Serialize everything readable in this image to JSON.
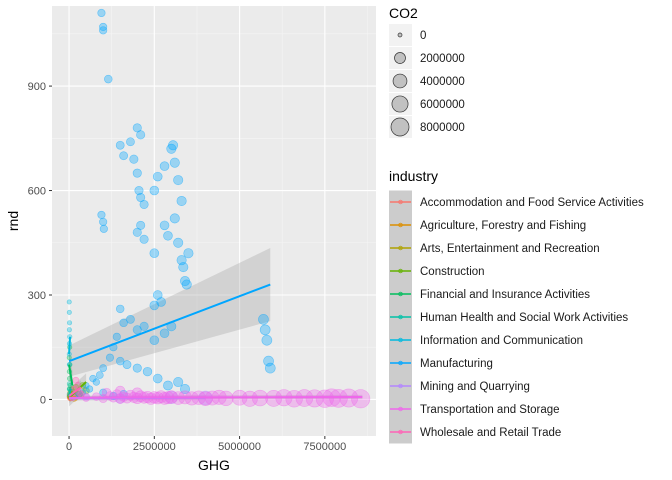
{
  "chart_data": {
    "type": "scatter",
    "xlabel": "GHG",
    "ylabel": "rnd",
    "xlim": [
      -500000,
      9000000
    ],
    "ylim": [
      -105,
      1130
    ],
    "x_ticks": [
      0,
      2500000,
      5000000,
      7500000
    ],
    "x_tick_labels": [
      "0",
      "2500000",
      "5000000",
      "7500000"
    ],
    "y_ticks": [
      0,
      300,
      600,
      900
    ],
    "y_tick_labels": [
      "0",
      "300",
      "600",
      "900"
    ],
    "grid": true,
    "background": "#ebebeb",
    "size_legend": {
      "title": "CO2",
      "values": [
        0,
        2000000,
        4000000,
        6000000,
        8000000
      ],
      "labels": [
        "0",
        "2000000",
        "4000000",
        "6000000",
        "8000000"
      ]
    },
    "color_legend": {
      "title": "industry",
      "position": "right"
    },
    "series": [
      {
        "name": "Accommodation and Food Service Activities",
        "color": "#F8766D",
        "points": [
          [
            5000,
            5,
            0
          ],
          [
            12000,
            12,
            20000
          ],
          [
            20000,
            3,
            10000
          ],
          [
            30000,
            18,
            30000
          ],
          [
            8000,
            8,
            5000
          ],
          [
            40000,
            2,
            15000
          ]
        ],
        "fit": [
          [
            0,
            5
          ],
          [
            45000,
            6
          ]
        ],
        "band": 5
      },
      {
        "name": "Agriculture, Forestry and Fishing",
        "color": "#DB8E00",
        "points": [
          [
            15000,
            8,
            40000
          ],
          [
            60000,
            4,
            80000
          ],
          [
            110000,
            15,
            120000
          ],
          [
            150000,
            2,
            100000
          ],
          [
            200000,
            6,
            150000
          ]
        ],
        "fit": [
          [
            0,
            6
          ],
          [
            200000,
            7
          ]
        ],
        "band": 6
      },
      {
        "name": "Arts, Entertainment and Recreation",
        "color": "#AEA200",
        "points": [
          [
            10000,
            10,
            10000
          ],
          [
            30000,
            20,
            20000
          ],
          [
            50000,
            5,
            15000
          ],
          [
            70000,
            30,
            25000
          ]
        ],
        "fit": [
          [
            0,
            8
          ],
          [
            80000,
            25
          ]
        ],
        "band": 12
      },
      {
        "name": "Construction",
        "color": "#64B200",
        "points": [
          [
            100000,
            22,
            100000
          ],
          [
            200000,
            35,
            150000
          ],
          [
            300000,
            15,
            200000
          ],
          [
            400000,
            40,
            180000
          ],
          [
            500000,
            25,
            250000
          ],
          [
            350000,
            10,
            120000
          ]
        ],
        "fit": [
          [
            0,
            5
          ],
          [
            500000,
            50
          ]
        ],
        "band": 25
      },
      {
        "name": "Financial and Insurance Activities",
        "color": "#00BD5C",
        "points": [
          [
            5000,
            120,
            5000
          ],
          [
            10000,
            80,
            10000
          ],
          [
            20000,
            150,
            5000
          ],
          [
            15000,
            60,
            8000
          ],
          [
            30000,
            40,
            10000
          ],
          [
            25000,
            100,
            6000
          ],
          [
            8000,
            30,
            4000
          ]
        ],
        "fit": [
          [
            0,
            100
          ],
          [
            100000,
            40
          ]
        ],
        "band": 40
      },
      {
        "name": "Human Health and Social Work Activities",
        "color": "#00C1A7",
        "points": [
          [
            5000,
            15,
            5000
          ],
          [
            15000,
            30,
            10000
          ],
          [
            30000,
            10,
            15000
          ],
          [
            10000,
            45,
            8000
          ],
          [
            45000,
            25,
            20000
          ]
        ],
        "fit": [
          [
            0,
            10
          ],
          [
            50000,
            30
          ]
        ],
        "band": 15
      },
      {
        "name": "Information and Communication",
        "color": "#00BADE",
        "points": [
          [
            5000,
            280,
            5000
          ],
          [
            8000,
            250,
            6000
          ],
          [
            10000,
            200,
            8000
          ],
          [
            12000,
            160,
            10000
          ],
          [
            6000,
            130,
            5000
          ],
          [
            15000,
            220,
            8000
          ],
          [
            20000,
            180,
            12000
          ],
          [
            9000,
            100,
            7000
          ]
        ],
        "fit": [
          [
            0,
            130
          ],
          [
            30000,
            180
          ]
        ],
        "band": 30
      },
      {
        "name": "Manufacturing",
        "color": "#00A6FF",
        "points": [
          [
            950000,
            1110,
            500000
          ],
          [
            1000000,
            1060,
            500000
          ],
          [
            1000000,
            1070,
            500000
          ],
          [
            1150000,
            920,
            600000
          ],
          [
            1500000,
            730,
            700000
          ],
          [
            1600000,
            700,
            700000
          ],
          [
            2000000,
            780,
            800000
          ],
          [
            2100000,
            760,
            800000
          ],
          [
            1800000,
            740,
            700000
          ],
          [
            1900000,
            690,
            800000
          ],
          [
            2000000,
            650,
            800000
          ],
          [
            2050000,
            600,
            800000
          ],
          [
            2100000,
            580,
            800000
          ],
          [
            2200000,
            560,
            800000
          ],
          [
            2500000,
            600,
            1000000
          ],
          [
            2600000,
            640,
            1000000
          ],
          [
            2800000,
            670,
            1000000
          ],
          [
            3000000,
            720,
            1200000
          ],
          [
            3050000,
            730,
            1200000
          ],
          [
            3100000,
            680,
            1200000
          ],
          [
            3200000,
            630,
            1200000
          ],
          [
            3300000,
            570,
            1200000
          ],
          [
            950000,
            530,
            500000
          ],
          [
            1000000,
            510,
            500000
          ],
          [
            1020000,
            490,
            500000
          ],
          [
            2000000,
            480,
            800000
          ],
          [
            2100000,
            500,
            800000
          ],
          [
            2200000,
            460,
            800000
          ],
          [
            2800000,
            500,
            1000000
          ],
          [
            2900000,
            470,
            1000000
          ],
          [
            3200000,
            450,
            1200000
          ],
          [
            3300000,
            400,
            1200000
          ],
          [
            3350000,
            380,
            1200000
          ],
          [
            3400000,
            340,
            1200000
          ],
          [
            3450000,
            330,
            1200000
          ],
          [
            3500000,
            420,
            1200000
          ],
          [
            3100000,
            520,
            1200000
          ],
          [
            2500000,
            420,
            1000000
          ],
          [
            1500000,
            260,
            600000
          ],
          [
            1600000,
            220,
            600000
          ],
          [
            1800000,
            230,
            700000
          ],
          [
            2000000,
            200,
            800000
          ],
          [
            2200000,
            210,
            800000
          ],
          [
            2500000,
            270,
            1000000
          ],
          [
            2600000,
            300,
            1000000
          ],
          [
            2700000,
            280,
            1000000
          ],
          [
            1400000,
            180,
            500000
          ],
          [
            1300000,
            150,
            500000
          ],
          [
            1200000,
            120,
            500000
          ],
          [
            1000000,
            90,
            400000
          ],
          [
            900000,
            70,
            400000
          ],
          [
            800000,
            50,
            300000
          ],
          [
            1500000,
            110,
            600000
          ],
          [
            1700000,
            100,
            700000
          ],
          [
            2000000,
            90,
            800000
          ],
          [
            2300000,
            80,
            900000
          ],
          [
            2600000,
            60,
            1000000
          ],
          [
            2900000,
            40,
            1100000
          ],
          [
            3200000,
            50,
            1200000
          ],
          [
            3400000,
            30,
            1200000
          ],
          [
            500000,
            40,
            200000
          ],
          [
            600000,
            30,
            300000
          ],
          [
            400000,
            20,
            200000
          ],
          [
            300000,
            15,
            100000
          ],
          [
            200000,
            10,
            100000
          ],
          [
            700000,
            60,
            300000
          ],
          [
            1000000,
            20,
            400000
          ],
          [
            1300000,
            10,
            500000
          ],
          [
            1600000,
            15,
            600000
          ],
          [
            5700000,
            230,
            1500000
          ],
          [
            5750000,
            200,
            1500000
          ],
          [
            5800000,
            170,
            1500000
          ],
          [
            5850000,
            110,
            1500000
          ],
          [
            5900000,
            90,
            1500000
          ],
          [
            2500000,
            170,
            1000000
          ],
          [
            2800000,
            190,
            1000000
          ],
          [
            3000000,
            210,
            1100000
          ]
        ],
        "fit": [
          [
            0,
            110
          ],
          [
            5900000,
            330
          ]
        ],
        "band_ends": [
          [
            0,
            45
          ],
          [
            5900000,
            105
          ]
        ]
      },
      {
        "name": "Mining and Quarrying",
        "color": "#B385FF",
        "points": [
          [
            100000,
            5,
            200000
          ],
          [
            500000,
            8,
            400000
          ],
          [
            1500000,
            3,
            1500000
          ],
          [
            3000000,
            6,
            3000000
          ],
          [
            4000000,
            4,
            4000000
          ]
        ],
        "fit": [
          [
            0,
            3
          ],
          [
            4000000,
            5
          ]
        ],
        "band": 6
      },
      {
        "name": "Transportation and Storage",
        "color": "#EF67EB",
        "points": [
          [
            500000,
            5,
            500000
          ],
          [
            800000,
            8,
            600000
          ],
          [
            1000000,
            3,
            800000
          ],
          [
            1200000,
            10,
            900000
          ],
          [
            1300000,
            5,
            1000000
          ],
          [
            1400000,
            15,
            1100000
          ],
          [
            1500000,
            2,
            1200000
          ],
          [
            1600000,
            8,
            1300000
          ],
          [
            1700000,
            4,
            1500000
          ],
          [
            1800000,
            12,
            1600000
          ],
          [
            1900000,
            6,
            1700000
          ],
          [
            2000000,
            3,
            1800000
          ],
          [
            2100000,
            9,
            2000000
          ],
          [
            2200000,
            5,
            2100000
          ],
          [
            2300000,
            7,
            2200000
          ],
          [
            2400000,
            2,
            2300000
          ],
          [
            2500000,
            6,
            2400000
          ],
          [
            2600000,
            4,
            2500000
          ],
          [
            2700000,
            8,
            2600000
          ],
          [
            2800000,
            3,
            2700000
          ],
          [
            2900000,
            5,
            2800000
          ],
          [
            3000000,
            7,
            3000000
          ],
          [
            3200000,
            4,
            3200000
          ],
          [
            3400000,
            6,
            3400000
          ],
          [
            3600000,
            3,
            3600000
          ],
          [
            3800000,
            5,
            3800000
          ],
          [
            4000000,
            2,
            4000000
          ],
          [
            4200000,
            4,
            4200000
          ],
          [
            4400000,
            6,
            4400000
          ],
          [
            4600000,
            3,
            4600000
          ],
          [
            5000000,
            5,
            5000000
          ],
          [
            5300000,
            2,
            5300000
          ],
          [
            5600000,
            4,
            5600000
          ],
          [
            6000000,
            3,
            6000000
          ],
          [
            6300000,
            5,
            6300000
          ],
          [
            6600000,
            2,
            6600000
          ],
          [
            6900000,
            4,
            6900000
          ],
          [
            7200000,
            3,
            7200000
          ],
          [
            7500000,
            2,
            7500000
          ],
          [
            7700000,
            5,
            7700000
          ],
          [
            7900000,
            3,
            7900000
          ],
          [
            8200000,
            4,
            8200000
          ],
          [
            8550000,
            2,
            8550000
          ],
          [
            1100000,
            20,
            900000
          ],
          [
            1500000,
            25,
            1200000
          ],
          [
            2000000,
            18,
            1800000
          ]
        ],
        "fit": [
          [
            0,
            5
          ],
          [
            8600000,
            7
          ]
        ],
        "band": 6
      },
      {
        "name": "Wholesale and Retail Trade",
        "color": "#FF63B6",
        "points": [
          [
            100000,
            10,
            100000
          ],
          [
            150000,
            30,
            150000
          ],
          [
            200000,
            55,
            200000
          ],
          [
            250000,
            40,
            250000
          ],
          [
            300000,
            20,
            300000
          ],
          [
            80000,
            5,
            80000
          ],
          [
            350000,
            15,
            300000
          ]
        ],
        "fit": [
          [
            0,
            10
          ],
          [
            350000,
            35
          ]
        ],
        "band": 20
      }
    ]
  }
}
